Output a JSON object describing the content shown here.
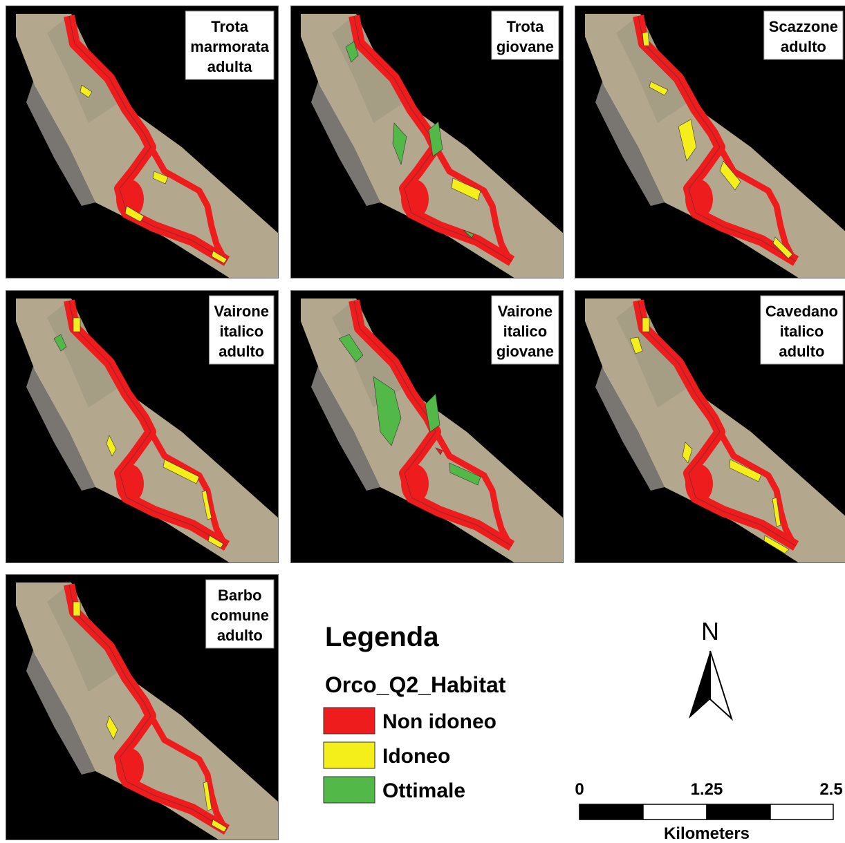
{
  "panels": [
    {
      "label": [
        "Trota",
        "marmorata",
        "adulta"
      ]
    },
    {
      "label": [
        "Trota",
        "giovane"
      ]
    },
    {
      "label": [
        "Scazzone",
        "adulto"
      ]
    },
    {
      "label": [
        "Vairone",
        "italico",
        "adulto"
      ]
    },
    {
      "label": [
        "Vairone",
        "italico",
        "giovane"
      ]
    },
    {
      "label": [
        "Cavedano",
        "italico",
        "adulto"
      ]
    },
    {
      "label": [
        "Barbo",
        "comune",
        "adulto"
      ]
    }
  ],
  "legend": {
    "title": "Legenda",
    "layer": "Orco_Q2_Habitat",
    "items": [
      {
        "label": "Non idoneo",
        "color": "#ee1c1c"
      },
      {
        "label": "Idoneo",
        "color": "#f4ee1a"
      },
      {
        "label": "Ottimale",
        "color": "#52b848"
      }
    ]
  },
  "north": "N",
  "scale": {
    "labels": [
      "0",
      "1.25",
      "2.5"
    ],
    "unit": "Kilometers"
  }
}
